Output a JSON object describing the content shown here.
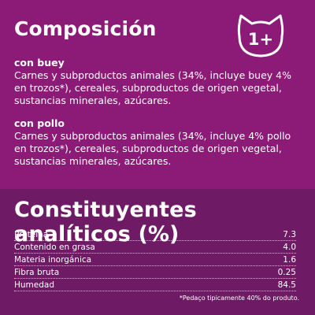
{
  "composition": {
    "title": "Composición",
    "badge": "1+",
    "sections": [
      {
        "heading": "con buey",
        "text": "Carnes y subproductos animales (34%, incluye buey 4% en trozos*), cereales, subproductos de origen vegetal, sustancias minerales, azúcares."
      },
      {
        "heading": "con pollo",
        "text": "Carnes y subproductos animales (34%, incluye 4% pollo en trozos*), cereales, subproductos de origen vegetal, sustancias minerales, azúcares."
      }
    ]
  },
  "analytics": {
    "title": "Constituyentes analíticos (%)",
    "rows": [
      {
        "label": "Proteína",
        "value": "7.3"
      },
      {
        "label": "Contenido en grasa",
        "value": "4.0"
      },
      {
        "label": "Materia inorgánica",
        "value": "1.6"
      },
      {
        "label": "Fibra bruta",
        "value": "0.25"
      },
      {
        "label": "Humedad",
        "value": "84.5"
      }
    ],
    "footnote": "*Pedaço tipicamente 40% do produto."
  },
  "colors": {
    "top_background": "#8c1b78",
    "bottom_background": "#6e1a64",
    "text": "#ffffff"
  }
}
